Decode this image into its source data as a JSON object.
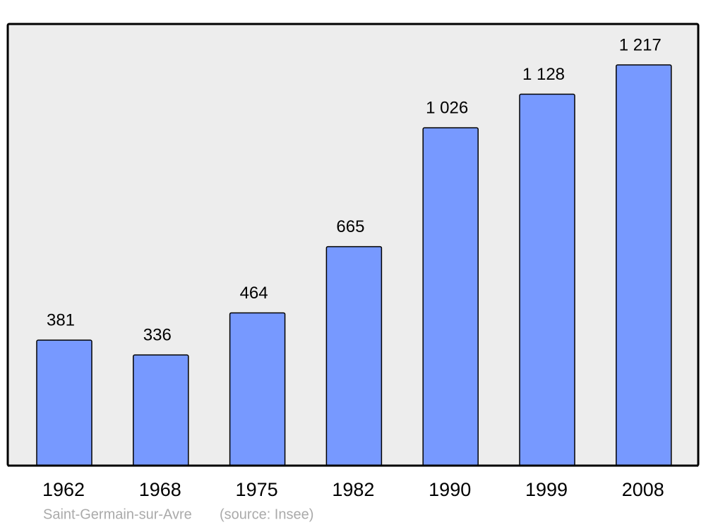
{
  "chart_data": {
    "type": "bar",
    "categories": [
      "1962",
      "1968",
      "1975",
      "1982",
      "1990",
      "1999",
      "2008"
    ],
    "values": [
      381,
      336,
      464,
      665,
      1026,
      1128,
      1217
    ],
    "value_labels": [
      "381",
      "336",
      "464",
      "665",
      "1 026",
      "1 128",
      "1 217"
    ],
    "color": "#7799ff",
    "caption": "Saint-Germain-sur-Avre",
    "source": "(source: Insee)"
  }
}
